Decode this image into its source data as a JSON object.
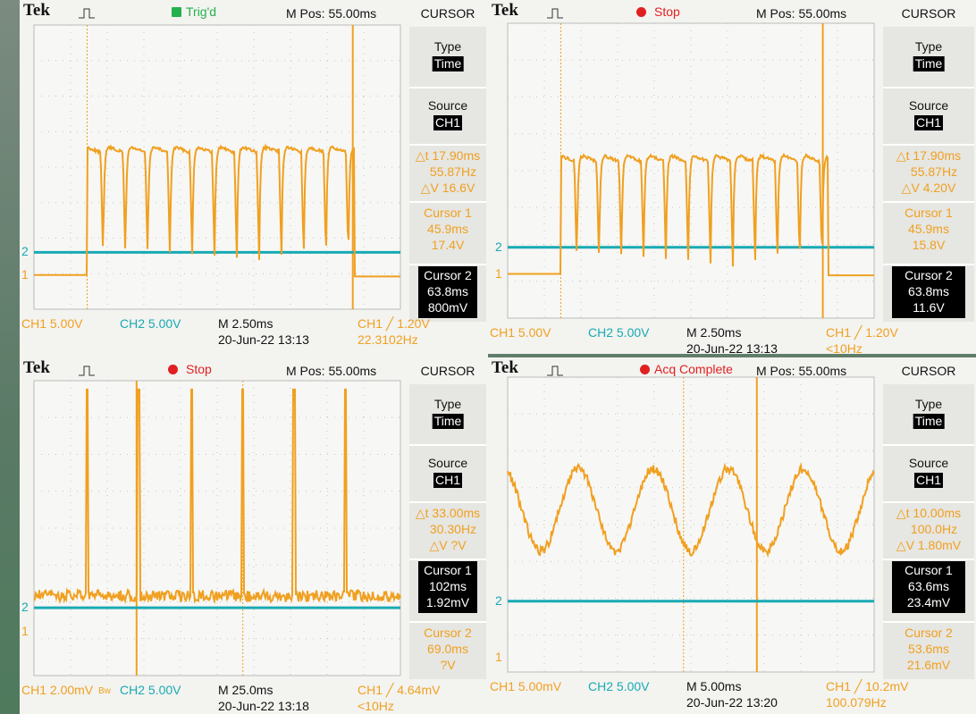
{
  "channel_markers": [
    "1",
    "2"
  ],
  "panels": [
    {
      "brand": "Tek",
      "status": "Trig'd",
      "status_indicator": "#22b14c",
      "mpos": "M Pos: 55.00ms",
      "menu": "CURSOR",
      "type_label": "Type",
      "type_value": "Time",
      "source_label": "Source",
      "source_value": "CH1",
      "delta_t": "△t 17.90ms",
      "inv_delta_t": "55.87Hz",
      "delta_v": "△V 16.6V",
      "cursor1": {
        "label": "Cursor 1",
        "time": "45.9ms",
        "value": "17.4V"
      },
      "cursor2": {
        "label": "Cursor 2",
        "time": "63.8ms",
        "value": "800mV"
      },
      "highlight": "cursor2",
      "ch1_scale": "CH1 5.00V",
      "ch2_scale": "CH2 5.00V",
      "timebase": "M 2.50ms",
      "datetime": "20-Jun-22 13:13",
      "trigger": "CH1 ╱ 1.20V",
      "trigger_freq": "22.3102Hz",
      "waveform": "pulse"
    },
    {
      "brand": "Tek",
      "status": "Stop",
      "status_indicator": "#e02020",
      "mpos": "M Pos: 55.00ms",
      "menu": "CURSOR",
      "type_label": "Type",
      "type_value": "Time",
      "source_label": "Source",
      "source_value": "CH1",
      "delta_t": "△t 17.90ms",
      "inv_delta_t": "55.87Hz",
      "delta_v": "△V 4.20V",
      "cursor1": {
        "label": "Cursor 1",
        "time": "45.9ms",
        "value": "15.8V"
      },
      "cursor2": {
        "label": "Cursor 2",
        "time": "63.8ms",
        "value": "11.6V"
      },
      "highlight": "cursor2",
      "ch1_scale": "CH1 5.00V",
      "ch2_scale": "CH2 5.00V",
      "timebase": "M 2.50ms",
      "datetime": "20-Jun-22 13:13",
      "trigger": "CH1 ╱ 1.20V",
      "trigger_freq": "<10Hz",
      "waveform": "pulse"
    },
    {
      "brand": "Tek",
      "status": "Stop",
      "status_indicator": "#e02020",
      "mpos": "M Pos: 55.00ms",
      "menu": "CURSOR",
      "type_label": "Type",
      "type_value": "Time",
      "source_label": "Source",
      "source_value": "CH1",
      "delta_t": "△t 33.00ms",
      "inv_delta_t": "30.30Hz",
      "delta_v": "△V ?V",
      "cursor1": {
        "label": "Cursor 1",
        "time": "102ms",
        "value": "1.92mV"
      },
      "cursor2": {
        "label": "Cursor 2",
        "time": "69.0ms",
        "value": "?V"
      },
      "highlight": "cursor1",
      "ch1_scale": "CH1 2.00mV",
      "bw": "Bw",
      "ch2_scale": "CH2 5.00V",
      "timebase": "M 25.0ms",
      "datetime": "20-Jun-22 13:18",
      "trigger": "CH1 ╱ 4.64mV",
      "trigger_freq": "<10Hz",
      "waveform": "spike"
    },
    {
      "brand": "Tek",
      "status": "Acq Complete",
      "status_indicator": "#e02020",
      "mpos": "M Pos: 55.00ms",
      "menu": "CURSOR",
      "type_label": "Type",
      "type_value": "Time",
      "source_label": "Source",
      "source_value": "CH1",
      "delta_t": "△t 10.00ms",
      "inv_delta_t": "100.0Hz",
      "delta_v": "△V 1.80mV",
      "cursor1": {
        "label": "Cursor 1",
        "time": "63.6ms",
        "value": "23.4mV"
      },
      "cursor2": {
        "label": "Cursor 2",
        "time": "53.6ms",
        "value": "21.6mV"
      },
      "highlight": "cursor1",
      "ch1_scale": "CH1 5.00mV",
      "ch2_scale": "CH2 5.00V",
      "timebase": "M 5.00ms",
      "datetime": "20-Jun-22 13:20",
      "trigger": "CH1 ╱ 10.2mV",
      "trigger_freq": "100.079Hz",
      "waveform": "sine"
    }
  ]
}
